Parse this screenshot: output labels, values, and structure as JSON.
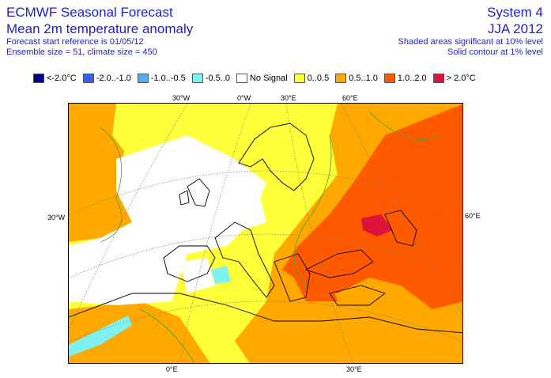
{
  "header": {
    "title": "ECMWF Seasonal Forecast",
    "subtitle": "Mean 2m temperature anomaly",
    "start_ref": "Forecast start reference is 01/05/12",
    "ensemble": "Ensemble size = 51, climate size = 450",
    "system": "System 4",
    "season": "JJA 2012",
    "note_shaded": "Shaded areas significant at 10% level",
    "note_contour": "Solid contour at 1% level"
  },
  "legend": [
    {
      "label": "<-2.0°C",
      "color": "#00008b"
    },
    {
      "label": "-2.0..-1.0",
      "color": "#3a5cf0"
    },
    {
      "label": "-1.0..-0.5",
      "color": "#5aaaf0"
    },
    {
      "label": "-0.5..0",
      "color": "#7ef2f2"
    },
    {
      "label": "No Signal",
      "color": "#ffffff"
    },
    {
      "label": "0..0.5",
      "color": "#ffff3a"
    },
    {
      "label": "0.5..1.0",
      "color": "#ffa800"
    },
    {
      "label": "1.0..2.0",
      "color": "#ff5a00"
    },
    {
      "label": "> 2.0°C",
      "color": "#dc143c"
    }
  ],
  "map_labels": {
    "top_30w": "30°W",
    "top_0w": "0°W",
    "top_30e": "30°E",
    "top_60e": "60°E",
    "left_30w": "30°W",
    "right_60e": "60°E",
    "bottom_0e": "0°E",
    "bottom_30e": "30°E"
  }
}
